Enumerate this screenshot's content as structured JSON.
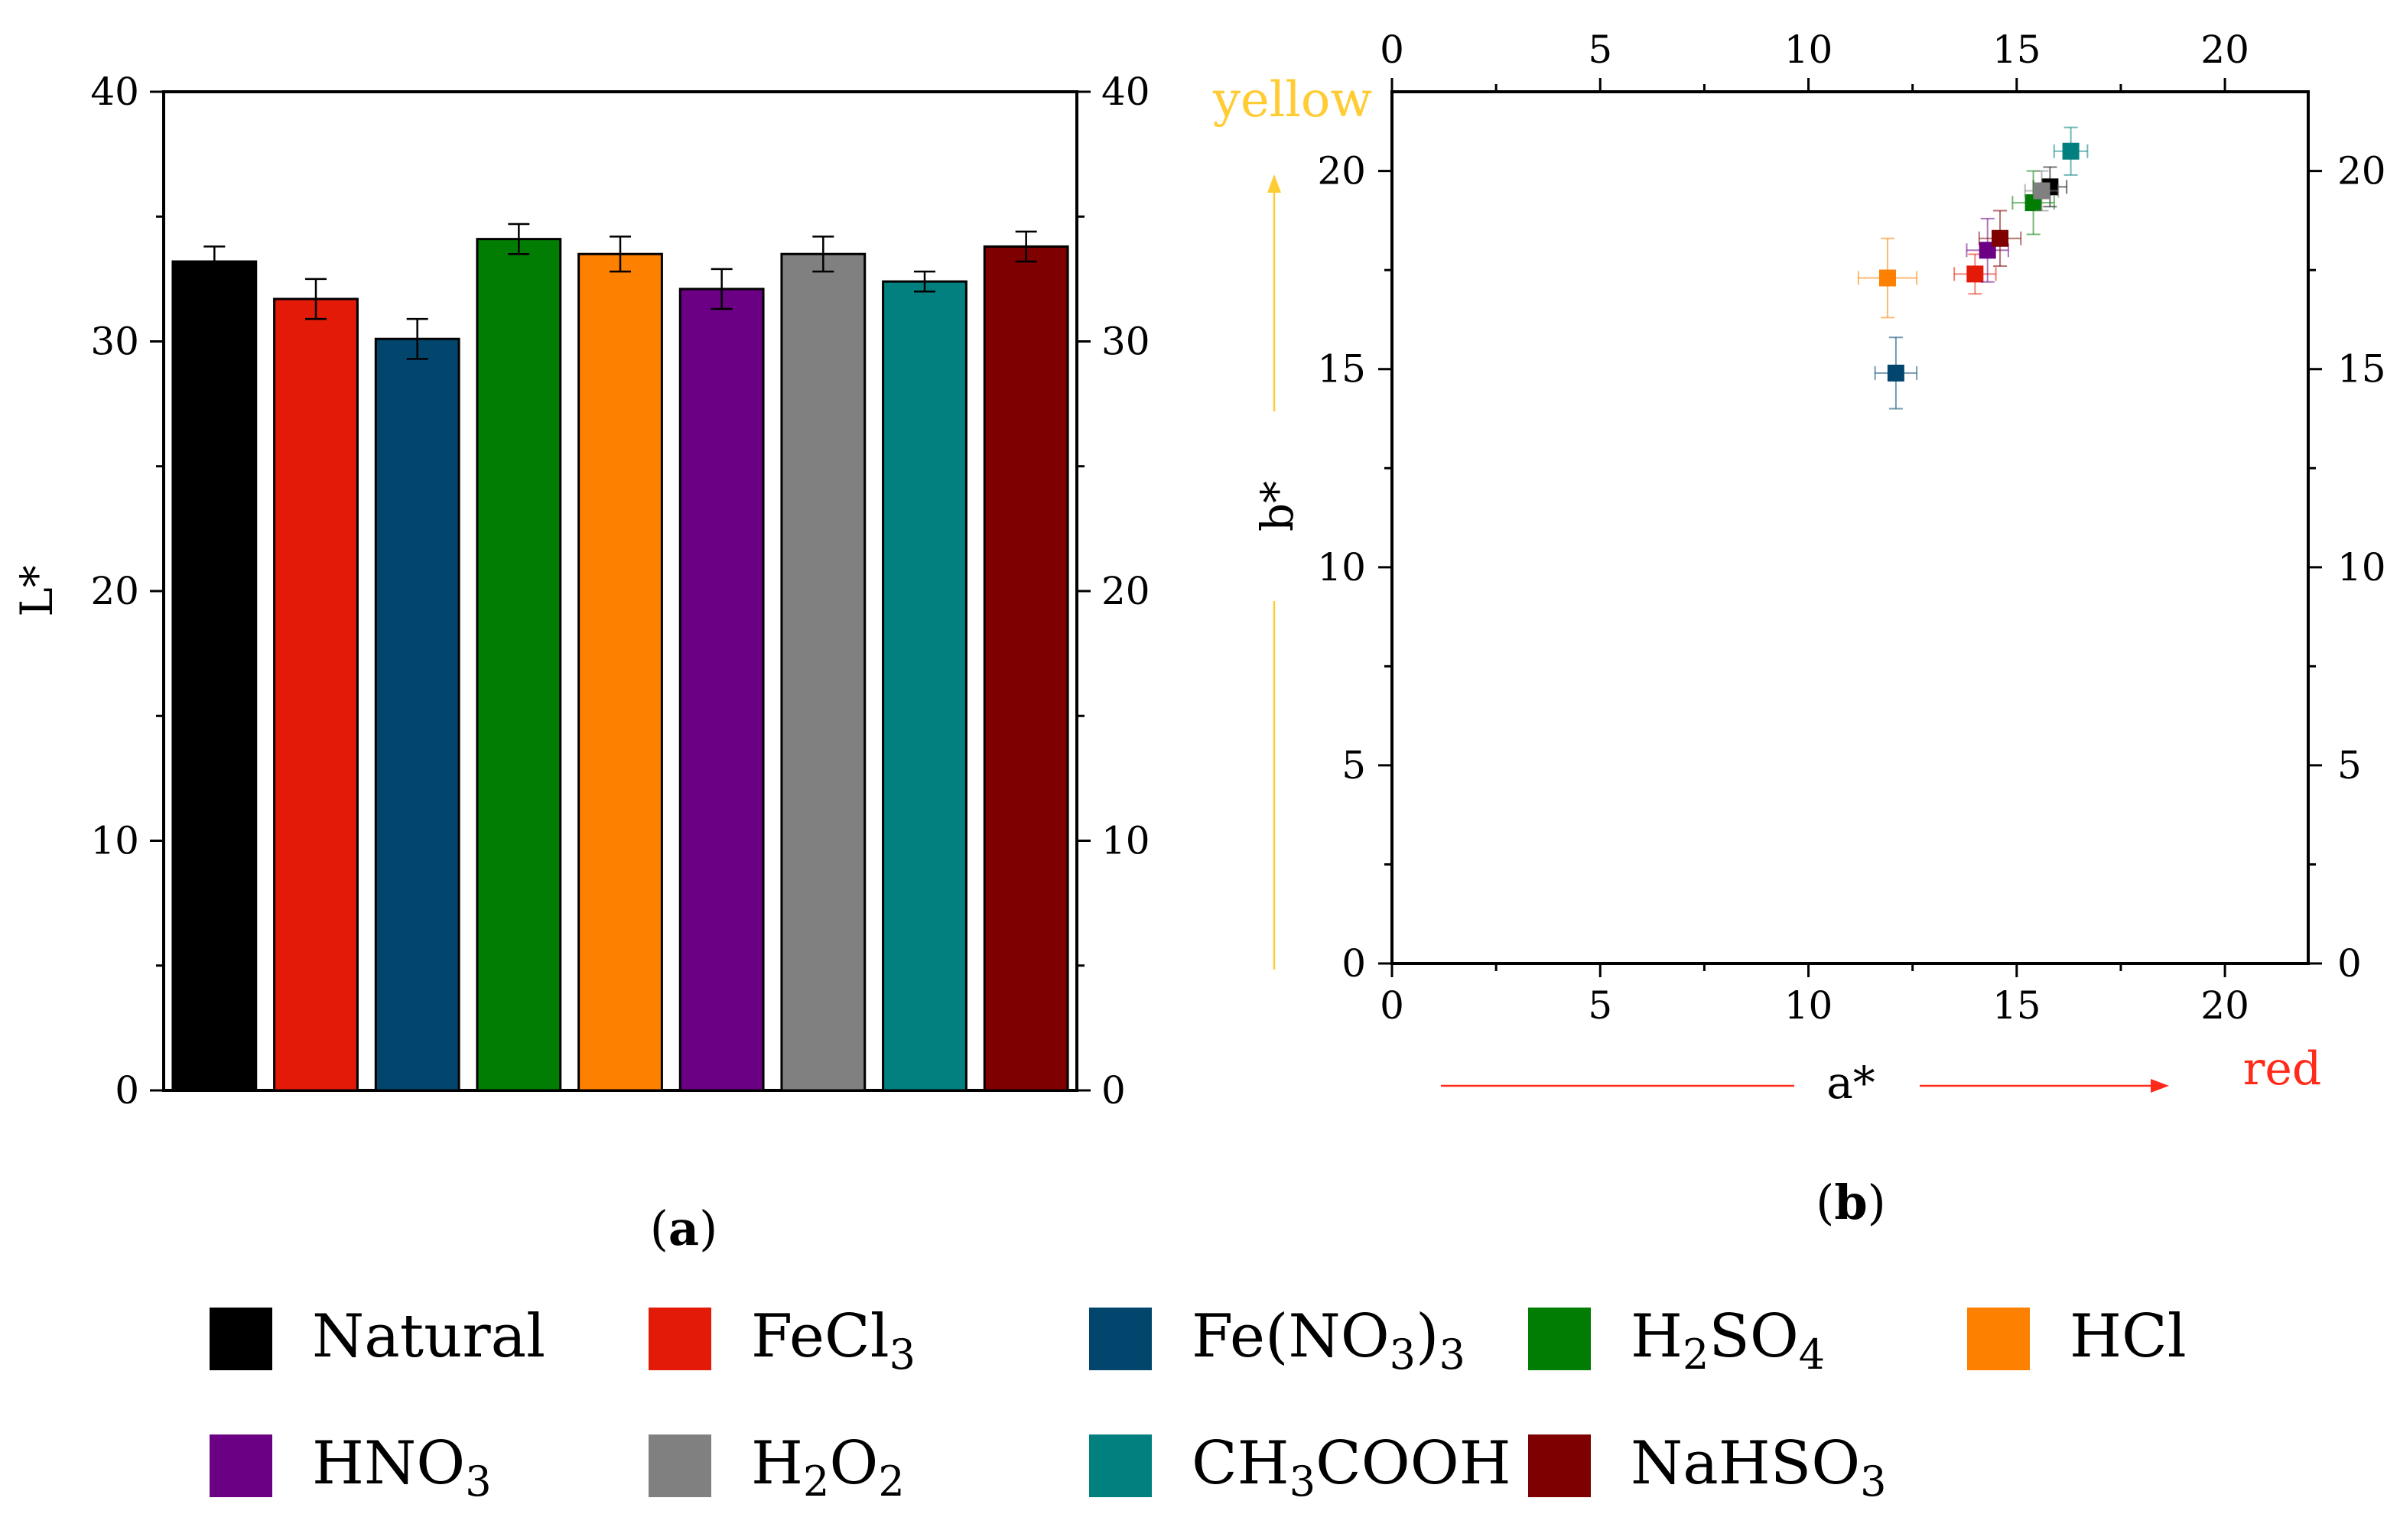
{
  "chart_data": [
    {
      "type": "bar",
      "panel": "(a)",
      "panel_letter": "a",
      "ylabel": "L*",
      "ylim": [
        0,
        40
      ],
      "yticks": [
        0,
        10,
        20,
        30,
        40
      ],
      "categories": [
        "Natural",
        "FeCl3",
        "Fe(NO3)3",
        "H2SO4",
        "HCl",
        "HNO3",
        "H2O2",
        "CH3COOH",
        "NaHSO3"
      ],
      "values": [
        33.2,
        31.7,
        30.1,
        34.1,
        33.5,
        32.1,
        33.5,
        32.4,
        33.8
      ],
      "errors": [
        0.6,
        0.8,
        0.8,
        0.6,
        0.7,
        0.8,
        0.7,
        0.4,
        0.6
      ]
    },
    {
      "type": "scatter",
      "panel": "(b)",
      "panel_letter": "b",
      "xlabel": "a*",
      "ylabel": "b*",
      "xlim": [
        0,
        22
      ],
      "ylim": [
        0,
        22
      ],
      "xticks": [
        0,
        5,
        10,
        15,
        20
      ],
      "yticks": [
        0,
        5,
        10,
        15,
        20
      ],
      "x_direction_label": "red",
      "y_direction_label": "yellow",
      "points": [
        {
          "name": "Natural",
          "x": 15.8,
          "y": 19.6,
          "xerr": 0.4,
          "yerr": 0.5
        },
        {
          "name": "FeCl3",
          "x": 14.0,
          "y": 17.4,
          "xerr": 0.5,
          "yerr": 0.5
        },
        {
          "name": "Fe(NO3)3",
          "x": 12.1,
          "y": 14.9,
          "xerr": 0.5,
          "yerr": 0.9
        },
        {
          "name": "H2SO4",
          "x": 15.4,
          "y": 19.2,
          "xerr": 0.5,
          "yerr": 0.8
        },
        {
          "name": "HCl",
          "x": 11.9,
          "y": 17.3,
          "xerr": 0.7,
          "yerr": 1.0
        },
        {
          "name": "HNO3",
          "x": 14.3,
          "y": 18.0,
          "xerr": 0.5,
          "yerr": 0.8
        },
        {
          "name": "H2O2",
          "x": 15.6,
          "y": 19.5,
          "xerr": 0.4,
          "yerr": 0.5
        },
        {
          "name": "CH3COOH",
          "x": 16.3,
          "y": 20.5,
          "xerr": 0.4,
          "yerr": 0.6
        },
        {
          "name": "NaHSO3",
          "x": 14.6,
          "y": 18.3,
          "xerr": 0.5,
          "yerr": 0.7
        }
      ]
    }
  ],
  "series_colors": {
    "Natural": "#000000",
    "FeCl3": "#e31a07",
    "Fe(NO3)3": "#02466e",
    "H2SO4": "#027d04",
    "HCl": "#fe8000",
    "HNO3": "#6b0084",
    "H2O2": "#808080",
    "CH3COOH": "#027f7f",
    "NaHSO3": "#7e0000"
  },
  "direction_colors": {
    "red": "#ff2a1a",
    "yellow": "#ffcc33"
  },
  "legend": [
    {
      "key": "Natural",
      "label": [
        {
          "t": "Natural"
        }
      ]
    },
    {
      "key": "FeCl3",
      "label": [
        {
          "t": "FeCl"
        },
        {
          "t": "3",
          "sub": true
        }
      ]
    },
    {
      "key": "Fe(NO3)3",
      "label": [
        {
          "t": "Fe(NO"
        },
        {
          "t": "3",
          "sub": true
        },
        {
          "t": ")"
        },
        {
          "t": "3",
          "sub": true
        }
      ]
    },
    {
      "key": "H2SO4",
      "label": [
        {
          "t": "H"
        },
        {
          "t": "2",
          "sub": true
        },
        {
          "t": "SO"
        },
        {
          "t": "4",
          "sub": true
        }
      ]
    },
    {
      "key": "HCl",
      "label": [
        {
          "t": "HCl"
        }
      ]
    },
    {
      "key": "HNO3",
      "label": [
        {
          "t": "HNO"
        },
        {
          "t": "3",
          "sub": true
        }
      ]
    },
    {
      "key": "H2O2",
      "label": [
        {
          "t": "H"
        },
        {
          "t": "2",
          "sub": true
        },
        {
          "t": "O"
        },
        {
          "t": "2",
          "sub": true
        }
      ]
    },
    {
      "key": "CH3COOH",
      "label": [
        {
          "t": "CH"
        },
        {
          "t": "3",
          "sub": true
        },
        {
          "t": "COOH"
        }
      ]
    },
    {
      "key": "NaHSO3",
      "label": [
        {
          "t": "NaHSO"
        },
        {
          "t": "3",
          "sub": true
        }
      ]
    }
  ]
}
